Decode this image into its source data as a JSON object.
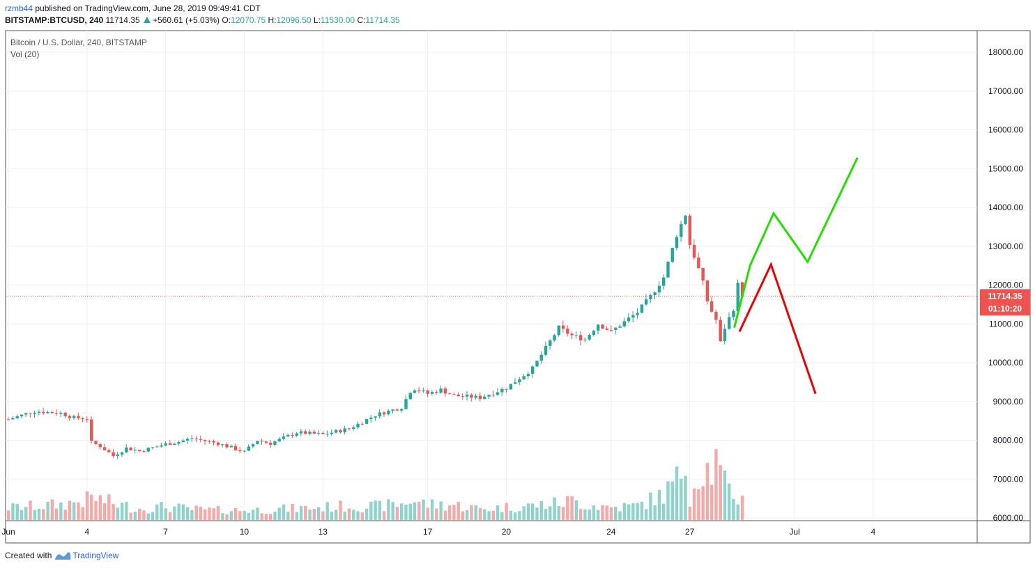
{
  "header": {
    "user": "rzmb44",
    "published": "published on TradingView.com, June 28, 2019 09:49:41 CDT",
    "symbol": "BITSTAMP:BTCUSD, 240",
    "last": "11714.35",
    "change": "+560.61 (+5.03%)",
    "o_label": "O:",
    "o_value": "12070.75",
    "h_label": "H:",
    "h_value": "12096.50",
    "l_label": "L:",
    "l_value": "11530.00",
    "c_label": "C:",
    "c_value": "11714.35"
  },
  "legend": {
    "title": "Bitcoin / U.S. Dollar, 240, BITSTAMP",
    "volume": "Vol (20)"
  },
  "price_tag": {
    "price": "11714.35",
    "countdown": "01:10:20"
  },
  "footer": {
    "created_with": "Created with",
    "brand": "TradingView"
  },
  "colors": {
    "up": "#26a69a",
    "down": "#ef5350",
    "up_volume": "#8fd4cc",
    "down_volume": "#f7a9a7",
    "bull_path": "#22e000",
    "bear_path": "#ee0000",
    "price_line": "#ef5350"
  },
  "chart_data": {
    "type": "candlestick",
    "ylim": [
      6000,
      18600
    ],
    "yticks": [
      "18000.00",
      "17000.00",
      "16000.00",
      "15000.00",
      "14000.00",
      "13000.00",
      "12000.00",
      "11000.00",
      "10000.00",
      "9000.00",
      "8000.00",
      "7000.00",
      "6000.00"
    ],
    "xticks": [
      {
        "label": "Jun",
        "day": 0
      },
      {
        "label": "4",
        "day": 3
      },
      {
        "label": "7",
        "day": 6
      },
      {
        "label": "10",
        "day": 9
      },
      {
        "label": "13",
        "day": 12
      },
      {
        "label": "17",
        "day": 16
      },
      {
        "label": "20",
        "day": 19
      },
      {
        "label": "24",
        "day": 23
      },
      {
        "label": "27",
        "day": 26
      },
      {
        "label": "Jul",
        "day": 30
      },
      {
        "label": "4",
        "day": 33
      }
    ],
    "close_anchors": [
      [
        0,
        8540
      ],
      [
        1,
        8750
      ],
      [
        2,
        8700
      ],
      [
        2.5,
        8580
      ],
      [
        3,
        8560
      ],
      [
        3.15,
        7950
      ],
      [
        3.5,
        7850
      ],
      [
        4,
        7600
      ],
      [
        4.5,
        7800
      ],
      [
        5,
        7720
      ],
      [
        6,
        7900
      ],
      [
        6.5,
        7960
      ],
      [
        7,
        8050
      ],
      [
        8,
        7920
      ],
      [
        9,
        7700
      ],
      [
        9.5,
        8000
      ],
      [
        10,
        7920
      ],
      [
        11,
        8200
      ],
      [
        12,
        8150
      ],
      [
        13,
        8300
      ],
      [
        14,
        8650
      ],
      [
        15,
        8850
      ],
      [
        15.4,
        9350
      ],
      [
        16,
        9200
      ],
      [
        16.5,
        9300
      ],
      [
        17,
        9150
      ],
      [
        18,
        9100
      ],
      [
        19,
        9350
      ],
      [
        20,
        9850
      ],
      [
        21,
        10900
      ],
      [
        21.5,
        10700
      ],
      [
        22,
        10600
      ],
      [
        22.5,
        11000
      ],
      [
        23,
        10800
      ],
      [
        24,
        11300
      ],
      [
        24.5,
        11700
      ],
      [
        25,
        12200
      ],
      [
        25.5,
        13300
      ],
      [
        25.85,
        13850
      ],
      [
        26,
        13050
      ],
      [
        26.25,
        12600
      ],
      [
        26.5,
        12050
      ],
      [
        26.7,
        11500
      ],
      [
        27,
        11100
      ],
      [
        27.2,
        10400
      ],
      [
        27.4,
        11150
      ],
      [
        27.6,
        11150
      ],
      [
        27.85,
        12070
      ],
      [
        28,
        11714
      ]
    ],
    "volume_anchors": [
      [
        0,
        600
      ],
      [
        2,
        750
      ],
      [
        3,
        980
      ],
      [
        3.2,
        1120
      ],
      [
        4,
        800
      ],
      [
        5,
        550
      ],
      [
        6,
        650
      ],
      [
        7,
        520
      ],
      [
        8,
        470
      ],
      [
        9,
        480
      ],
      [
        10,
        520
      ],
      [
        11,
        560
      ],
      [
        12,
        620
      ],
      [
        13,
        680
      ],
      [
        14,
        660
      ],
      [
        15,
        780
      ],
      [
        15.4,
        970
      ],
      [
        16,
        760
      ],
      [
        17,
        740
      ],
      [
        18,
        540
      ],
      [
        19,
        620
      ],
      [
        20,
        700
      ],
      [
        21,
        820
      ],
      [
        21.5,
        950
      ],
      [
        22,
        760
      ],
      [
        23,
        620
      ],
      [
        24,
        700
      ],
      [
        25,
        1250
      ],
      [
        25.6,
        2050
      ],
      [
        25.85,
        3100
      ],
      [
        26,
        1180
      ],
      [
        26.5,
        2700
      ],
      [
        26.8,
        2300
      ],
      [
        27,
        2800
      ],
      [
        27.3,
        1750
      ],
      [
        27.7,
        1150
      ],
      [
        28,
        1050
      ]
    ],
    "volume_ylim": [
      0,
      6800
    ],
    "last_close": 11714.35,
    "annotations": [
      {
        "name": "bullish-projection",
        "color": "#22e000",
        "points": [
          [
            27.7,
            10900
          ],
          [
            28.3,
            12500
          ],
          [
            29.2,
            13850
          ],
          [
            30.5,
            12600
          ],
          [
            32.4,
            15280
          ]
        ]
      },
      {
        "name": "bearish-projection",
        "color": "#ee0000",
        "points": [
          [
            27.9,
            10800
          ],
          [
            29.1,
            12530
          ],
          [
            30.8,
            9200
          ]
        ]
      }
    ]
  }
}
